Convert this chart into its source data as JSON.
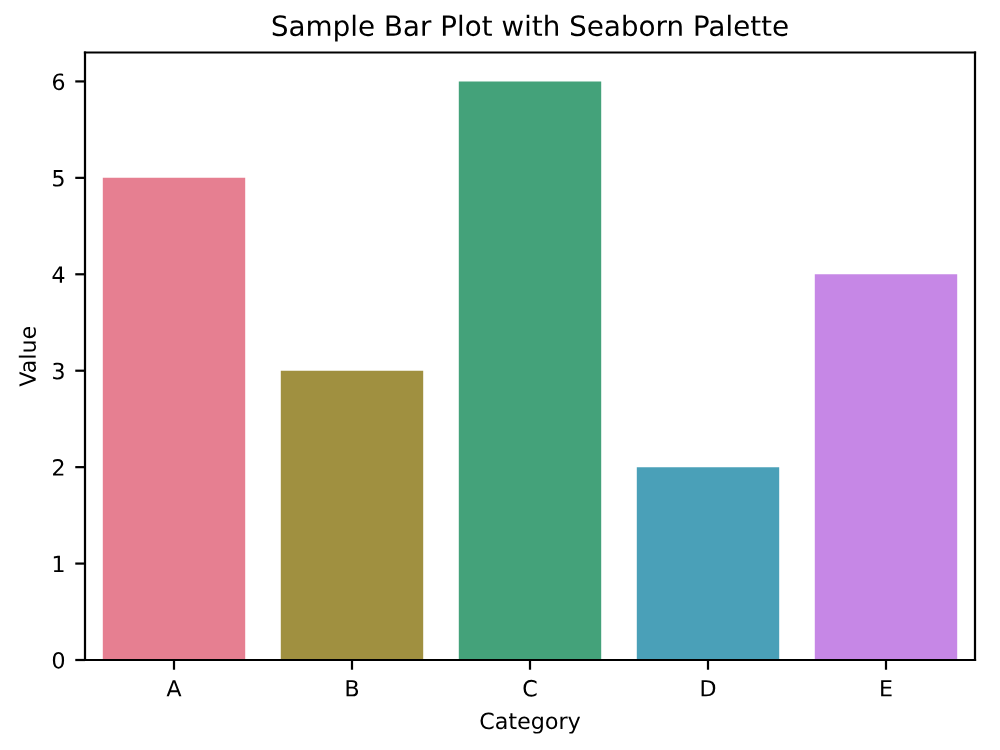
{
  "chart_data": {
    "type": "bar",
    "title": "Sample Bar Plot with Seaborn Palette",
    "xlabel": "Category",
    "ylabel": "Value",
    "categories": [
      "A",
      "B",
      "C",
      "D",
      "E"
    ],
    "values": [
      5,
      3,
      6,
      2,
      4
    ],
    "colors": [
      "#e67f91",
      "#a09040",
      "#44a27a",
      "#4aa0b8",
      "#c687e6"
    ],
    "ylim": [
      0,
      6.3
    ],
    "yticks": [
      0,
      1,
      2,
      3,
      4,
      5,
      6
    ],
    "grid": false
  }
}
